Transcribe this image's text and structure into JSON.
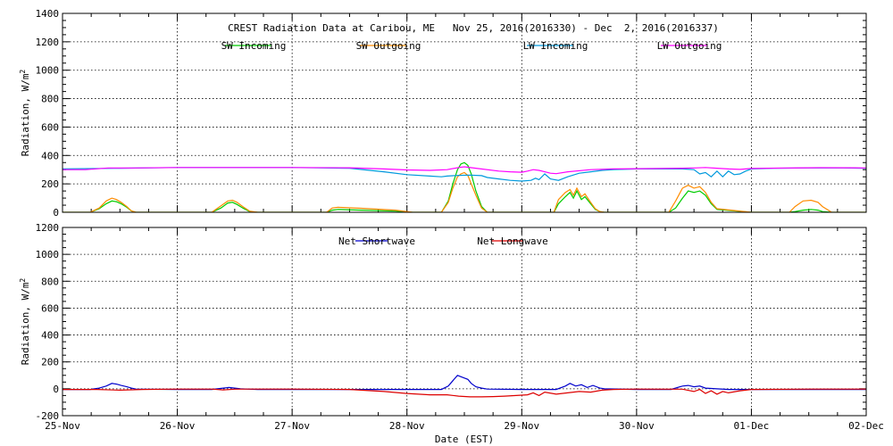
{
  "chart_data": [
    {
      "type": "line",
      "title": "CREST Radiation Data at Caribou, ME   Nov 25, 2016(2016330) - Dec  2, 2016(2016337)",
      "ylabel": "Radiation, W/m^2",
      "xlabel": "",
      "ylim": [
        0,
        1400
      ],
      "yticks": [
        0,
        200,
        400,
        600,
        800,
        1000,
        1200,
        1400
      ],
      "xlim": [
        0,
        7
      ],
      "grid": true,
      "legend_position": "top",
      "series": [
        {
          "name": "SW Incoming",
          "color": "#00cc00",
          "x": [
            0,
            0.24,
            0.32,
            0.38,
            0.43,
            0.47,
            0.51,
            0.56,
            0.6,
            0.64,
            0.7,
            1.0,
            1.3,
            1.38,
            1.44,
            1.48,
            1.52,
            1.57,
            1.63,
            1.7,
            2.0,
            2.3,
            2.35,
            2.4,
            2.6,
            2.9,
            3.05,
            3.3,
            3.36,
            3.4,
            3.44,
            3.47,
            3.5,
            3.53,
            3.56,
            3.6,
            3.65,
            3.7,
            3.75,
            4.0,
            4.28,
            4.32,
            4.38,
            4.42,
            4.45,
            4.48,
            4.52,
            4.55,
            4.6,
            4.64,
            4.68,
            4.72,
            5.0,
            5.28,
            5.34,
            5.4,
            5.45,
            5.5,
            5.55,
            5.6,
            5.65,
            5.7,
            6.0,
            6.33,
            6.38,
            6.45,
            6.52,
            6.58,
            6.62,
            6.7,
            7.0
          ],
          "y": [
            0,
            0,
            25,
            60,
            80,
            75,
            60,
            35,
            10,
            0,
            0,
            0,
            0,
            30,
            65,
            70,
            55,
            30,
            5,
            0,
            0,
            0,
            15,
            20,
            15,
            8,
            0,
            0,
            80,
            200,
            300,
            340,
            350,
            330,
            270,
            150,
            40,
            0,
            0,
            0,
            0,
            60,
            110,
            140,
            100,
            150,
            90,
            110,
            60,
            20,
            5,
            0,
            0,
            0,
            30,
            100,
            150,
            140,
            150,
            120,
            60,
            20,
            0,
            0,
            5,
            15,
            20,
            15,
            5,
            0,
            0
          ]
        },
        {
          "name": "SW Outgoing",
          "color": "#ff8c00",
          "x": [
            0,
            0.24,
            0.32,
            0.38,
            0.43,
            0.47,
            0.51,
            0.56,
            0.6,
            0.64,
            0.7,
            1.0,
            1.3,
            1.38,
            1.44,
            1.48,
            1.52,
            1.57,
            1.63,
            1.7,
            2.0,
            2.3,
            2.35,
            2.4,
            2.6,
            2.9,
            3.05,
            3.3,
            3.36,
            3.4,
            3.44,
            3.47,
            3.5,
            3.53,
            3.56,
            3.6,
            3.65,
            3.7,
            3.75,
            4.0,
            4.28,
            4.32,
            4.38,
            4.42,
            4.45,
            4.48,
            4.52,
            4.55,
            4.6,
            4.64,
            4.68,
            4.72,
            5.0,
            5.28,
            5.34,
            5.4,
            5.45,
            5.5,
            5.55,
            5.6,
            5.65,
            5.7,
            6.0,
            6.33,
            6.38,
            6.45,
            6.52,
            6.58,
            6.62,
            6.7,
            7.0
          ],
          "y": [
            0,
            0,
            30,
            80,
            100,
            90,
            70,
            40,
            10,
            0,
            0,
            0,
            0,
            45,
            80,
            85,
            70,
            40,
            8,
            0,
            0,
            0,
            30,
            35,
            28,
            15,
            0,
            0,
            70,
            170,
            250,
            270,
            280,
            260,
            200,
            120,
            30,
            0,
            0,
            0,
            0,
            90,
            140,
            160,
            120,
            170,
            110,
            130,
            70,
            25,
            5,
            0,
            0,
            0,
            80,
            170,
            190,
            170,
            180,
            140,
            70,
            25,
            0,
            0,
            40,
            80,
            85,
            70,
            40,
            0,
            0
          ]
        },
        {
          "name": "LW Incoming",
          "color": "#0099dd",
          "x": [
            0,
            0.5,
            1.0,
            1.5,
            2.0,
            2.5,
            2.8,
            3.0,
            3.2,
            3.3,
            3.35,
            3.45,
            3.55,
            3.65,
            3.7,
            3.8,
            3.9,
            4.0,
            4.08,
            4.12,
            4.15,
            4.2,
            4.25,
            4.32,
            4.4,
            4.5,
            4.6,
            4.7,
            4.8,
            5.0,
            5.2,
            5.4,
            5.5,
            5.55,
            5.6,
            5.65,
            5.7,
            5.75,
            5.8,
            5.85,
            5.9,
            5.95,
            6.0,
            6.2,
            6.5,
            6.8,
            7.0
          ],
          "y": [
            305,
            310,
            315,
            315,
            315,
            310,
            285,
            265,
            255,
            250,
            255,
            260,
            262,
            258,
            245,
            235,
            225,
            220,
            225,
            240,
            230,
            270,
            235,
            225,
            250,
            275,
            285,
            295,
            300,
            305,
            305,
            305,
            300,
            270,
            280,
            250,
            290,
            250,
            290,
            265,
            270,
            290,
            305,
            310,
            312,
            312,
            310
          ]
        },
        {
          "name": "LW Outgoing",
          "color": "#ff00ff",
          "x": [
            0,
            0.2,
            0.4,
            0.6,
            1.0,
            1.5,
            2.0,
            2.5,
            2.8,
            3.0,
            3.2,
            3.35,
            3.45,
            3.5,
            3.6,
            3.8,
            3.9,
            4.0,
            4.05,
            4.1,
            4.15,
            4.2,
            4.25,
            4.3,
            4.4,
            4.6,
            4.8,
            5.0,
            5.2,
            5.4,
            5.5,
            5.6,
            5.7,
            5.8,
            5.9,
            6.0,
            6.3,
            6.6,
            6.9,
            7.0
          ],
          "y": [
            300,
            300,
            312,
            312,
            315,
            315,
            315,
            313,
            305,
            298,
            295,
            300,
            315,
            320,
            310,
            290,
            285,
            282,
            290,
            300,
            295,
            285,
            275,
            272,
            285,
            300,
            305,
            307,
            308,
            310,
            312,
            315,
            310,
            305,
            302,
            308,
            312,
            314,
            313,
            312
          ]
        }
      ]
    },
    {
      "type": "line",
      "ylabel": "Radiation, W/m^2",
      "xlabel": "Date (EST)",
      "ylim": [
        -200,
        1200
      ],
      "yticks": [
        -200,
        0,
        200,
        400,
        600,
        800,
        1000,
        1200
      ],
      "xlim": [
        0,
        7
      ],
      "grid": true,
      "legend_position": "top",
      "x_tick_labels": [
        "25-Nov",
        "26-Nov",
        "27-Nov",
        "28-Nov",
        "29-Nov",
        "30-Nov",
        "01-Dec",
        "02-Dec"
      ],
      "series": [
        {
          "name": "Net Shortwave",
          "color": "#0000cc",
          "x": [
            0,
            0.24,
            0.32,
            0.38,
            0.43,
            0.47,
            0.51,
            0.56,
            0.6,
            0.64,
            0.7,
            1.0,
            1.3,
            1.4,
            1.45,
            1.5,
            1.55,
            1.63,
            1.7,
            2.0,
            2.5,
            3.0,
            3.3,
            3.36,
            3.4,
            3.44,
            3.47,
            3.5,
            3.53,
            3.56,
            3.6,
            3.65,
            3.7,
            4.0,
            4.3,
            4.38,
            4.42,
            4.47,
            4.52,
            4.57,
            4.62,
            4.68,
            4.72,
            5.0,
            5.3,
            5.4,
            5.45,
            5.5,
            5.55,
            5.6,
            5.7,
            5.8,
            6.0,
            7.0
          ],
          "y": [
            -5,
            -5,
            5,
            20,
            40,
            35,
            25,
            15,
            5,
            -2,
            -3,
            -5,
            -5,
            5,
            10,
            5,
            0,
            -3,
            -5,
            -5,
            -5,
            -5,
            -5,
            20,
            60,
            100,
            90,
            80,
            70,
            40,
            15,
            5,
            -2,
            -5,
            -5,
            20,
            40,
            20,
            30,
            10,
            25,
            5,
            0,
            -5,
            -5,
            20,
            25,
            15,
            20,
            5,
            0,
            -5,
            -5,
            -5
          ]
        },
        {
          "name": "Net Longwave",
          "color": "#dd0000",
          "x": [
            0,
            0.3,
            0.5,
            0.7,
            1.0,
            1.3,
            1.4,
            1.5,
            1.6,
            2.0,
            2.5,
            2.8,
            3.0,
            3.2,
            3.35,
            3.45,
            3.55,
            3.65,
            3.75,
            3.85,
            3.95,
            4.05,
            4.1,
            4.15,
            4.2,
            4.3,
            4.4,
            4.5,
            4.6,
            4.7,
            4.8,
            5.0,
            5.4,
            5.5,
            5.55,
            5.6,
            5.65,
            5.7,
            5.75,
            5.8,
            5.9,
            6.0,
            6.5,
            7.0
          ],
          "y": [
            -5,
            -5,
            -10,
            -5,
            -2,
            -2,
            -8,
            -3,
            -2,
            -2,
            -5,
            -20,
            -35,
            -45,
            -45,
            -55,
            -60,
            -60,
            -58,
            -55,
            -50,
            -45,
            -30,
            -50,
            -25,
            -40,
            -30,
            -20,
            -25,
            -10,
            -5,
            -2,
            -3,
            -20,
            -5,
            -35,
            -15,
            -40,
            -20,
            -30,
            -15,
            -5,
            -2,
            -2
          ]
        }
      ]
    }
  ]
}
